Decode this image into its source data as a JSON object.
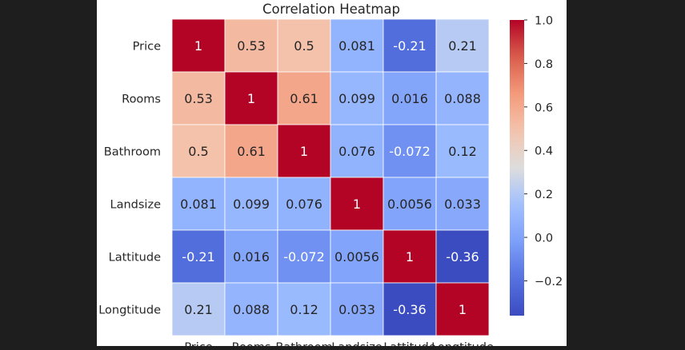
{
  "chart_data": {
    "type": "heatmap",
    "title": "Correlation Heatmap",
    "xlabel": "",
    "ylabel": "",
    "rows": [
      "Price",
      "Rooms",
      "Bathroom",
      "Landsize",
      "Lattitude",
      "Longtitude"
    ],
    "columns": [
      "Price",
      "Rooms",
      "Bathroom",
      "Landsize",
      "Lattitude",
      "Longtitude"
    ],
    "values": [
      [
        1,
        0.53,
        0.5,
        0.081,
        -0.21,
        0.21
      ],
      [
        0.53,
        1,
        0.61,
        0.099,
        0.016,
        0.088
      ],
      [
        0.5,
        0.61,
        1,
        0.076,
        -0.072,
        0.12
      ],
      [
        0.081,
        0.099,
        0.076,
        1,
        0.0056,
        0.033
      ],
      [
        -0.21,
        0.016,
        -0.072,
        0.0056,
        1,
        -0.36
      ],
      [
        0.21,
        0.088,
        0.12,
        0.033,
        -0.36,
        1
      ]
    ],
    "labels": [
      [
        "1",
        "0.53",
        "0.5",
        "0.081",
        "-0.21",
        "0.21"
      ],
      [
        "0.53",
        "1",
        "0.61",
        "0.099",
        "0.016",
        "0.088"
      ],
      [
        "0.5",
        "0.61",
        "1",
        "0.076",
        "-0.072",
        "0.12"
      ],
      [
        "0.081",
        "0.099",
        "0.076",
        "1",
        "0.0056",
        "0.033"
      ],
      [
        "-0.21",
        "0.016",
        "-0.072",
        "0.0056",
        "1",
        "-0.36"
      ],
      [
        "0.21",
        "0.088",
        "0.12",
        "0.033",
        "-0.36",
        "1"
      ]
    ],
    "colormap": "coolwarm",
    "colorbar": {
      "vmin": -0.36,
      "vmax": 1,
      "ticks": [
        1.0,
        0.8,
        0.6,
        0.4,
        0.2,
        0.0,
        -0.2
      ],
      "tick_labels": [
        "1.0",
        "0.8",
        "0.6",
        "0.4",
        "0.2",
        "0.0",
        "−0.2"
      ]
    },
    "cell_borders": "#ffffff",
    "text_colors": {
      "dark": "#262626",
      "light": "#ffffff"
    }
  }
}
